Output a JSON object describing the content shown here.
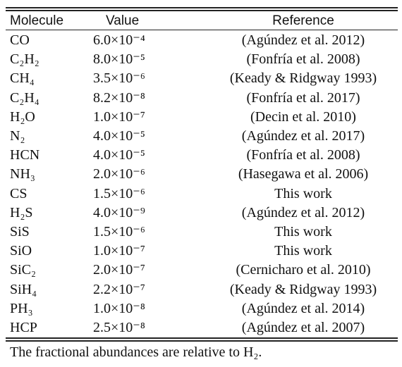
{
  "table": {
    "header": [
      "Molecule",
      "Value",
      "Reference"
    ],
    "rows": [
      [
        "CO",
        "6.0×10⁻⁴",
        "(Agúndez et al. 2012)"
      ],
      [
        "C₂H₂",
        "8.0×10⁻⁵",
        "(Fonfría et al. 2008)"
      ],
      [
        "CH₄",
        "3.5×10⁻⁶",
        "(Keady & Ridgway 1993)"
      ],
      [
        "C₂H₄",
        "8.2×10⁻⁸",
        "(Fonfría et al. 2017)"
      ],
      [
        "H₂O",
        "1.0×10⁻⁷",
        "(Decin et al. 2010)"
      ],
      [
        "N₂",
        "4.0×10⁻⁵",
        "(Agúndez et al. 2017)"
      ],
      [
        "HCN",
        "4.0×10⁻⁵",
        "(Fonfría et al. 2008)"
      ],
      [
        "NH₃",
        "2.0×10⁻⁶",
        "(Hasegawa et al. 2006)"
      ],
      [
        "CS",
        "1.5×10⁻⁶",
        "This work"
      ],
      [
        "H₂S",
        "4.0×10⁻⁹",
        "(Agúndez et al. 2012)"
      ],
      [
        "SiS",
        "1.5×10⁻⁶",
        "This work"
      ],
      [
        "SiO",
        "1.0×10⁻⁷",
        "This work"
      ],
      [
        "SiC₂",
        "2.0×10⁻⁷",
        "(Cernicharo et al. 2010)"
      ],
      [
        "SiH₄",
        "2.2×10⁻⁷",
        "(Keady & Ridgway 1993)"
      ],
      [
        "PH₃",
        "1.0×10⁻⁸",
        "(Agúndez et al. 2014)"
      ],
      [
        "HCP",
        "2.5×10⁻⁸",
        "(Agúndez et al. 2007)"
      ]
    ],
    "footnote": "The fractional abundances are relative to H₂."
  }
}
